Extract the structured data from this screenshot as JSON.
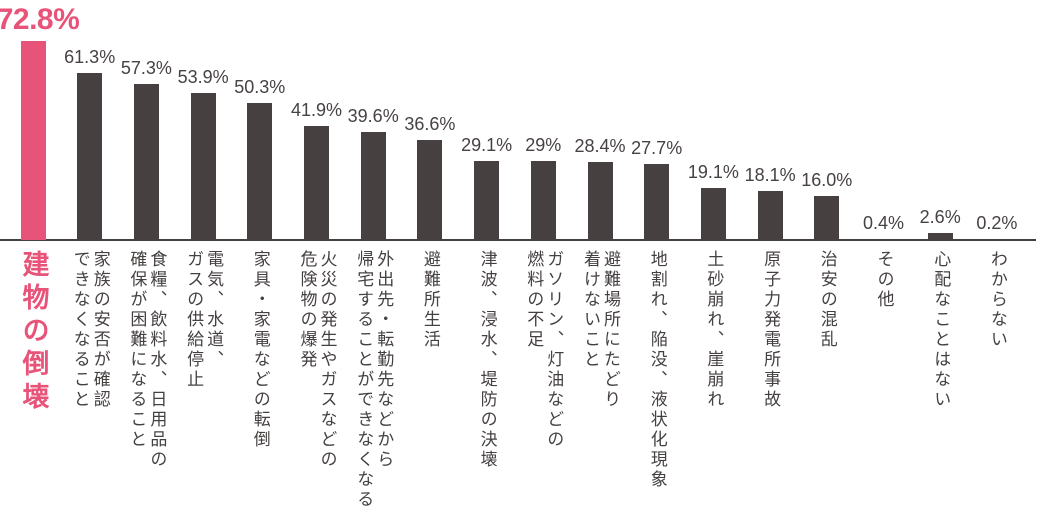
{
  "page": {
    "background": "#ffffff"
  },
  "chart_data": {
    "type": "bar",
    "title": "",
    "xlabel": "",
    "ylabel": "",
    "unit": "%",
    "ylim": [
      0,
      80
    ],
    "grid": false,
    "legend_position": "none",
    "orientation": "vertical-bars",
    "highlight_index": 0,
    "colors": {
      "highlight": "#e8537a",
      "bar": "#464040",
      "value_text": "#474242",
      "category_text": "#464141",
      "axis": "#454040"
    },
    "categories": [
      "建物の倒壊",
      "家族の安否が確認できなくなること",
      "食糧、飲料水、日用品の確保が困難になること",
      "電気、水道、ガスの供給停止",
      "家具・家電などの転倒",
      "火災の発生やガスなどの危険物の爆発",
      "外出先・転勤先などから帰宅することができなくなる",
      "避難所生活",
      "津波、浸水、堤防の決壊",
      "ガソリン、灯油などの燃料の不足",
      "避難場所にたどり着けないこと",
      "地割れ、陥没、液状化現象",
      "土砂崩れ、崖崩れ",
      "原子力発電所事故",
      "治安の混乱",
      "その他",
      "心配なことはない",
      "わからない"
    ],
    "category_lines": [
      [
        "建物の倒壊"
      ],
      [
        "家族の安否が確認",
        "できなくなること"
      ],
      [
        "食糧、飲料水、日用品の",
        "確保が困難になること"
      ],
      [
        "電気、水道、",
        "ガスの供給停止"
      ],
      [
        "家具・家電などの転倒"
      ],
      [
        "火災の発生やガスなどの",
        "危険物の爆発"
      ],
      [
        "外出先・転勤先などから",
        "帰宅することができなくなる"
      ],
      [
        "避難所生活"
      ],
      [
        "津波、浸水、堤防の決壊"
      ],
      [
        "ガソリン、灯油などの",
        "燃料の不足"
      ],
      [
        "避難場所にたどり",
        "着けないこと"
      ],
      [
        "地割れ、陥没、液状化現象"
      ],
      [
        "土砂崩れ、崖崩れ"
      ],
      [
        "原子力発電所事故"
      ],
      [
        "治安の混乱"
      ],
      [
        "その他"
      ],
      [
        "心配なことはない"
      ],
      [
        "わからない"
      ]
    ],
    "values": [
      72.8,
      61.3,
      57.3,
      53.9,
      50.3,
      41.9,
      39.6,
      36.6,
      29.1,
      29,
      28.4,
      27.7,
      19.1,
      18.1,
      16.0,
      0.4,
      2.6,
      0.2
    ],
    "value_labels": [
      "72.8%",
      "61.3%",
      "57.3%",
      "53.9%",
      "50.3%",
      "41.9%",
      "39.6%",
      "36.6%",
      "29.1%",
      "29%",
      "28.4%",
      "27.7%",
      "19.1%",
      "18.1%",
      "16.0%",
      "0.4%",
      "2.6%",
      "0.2%"
    ]
  }
}
